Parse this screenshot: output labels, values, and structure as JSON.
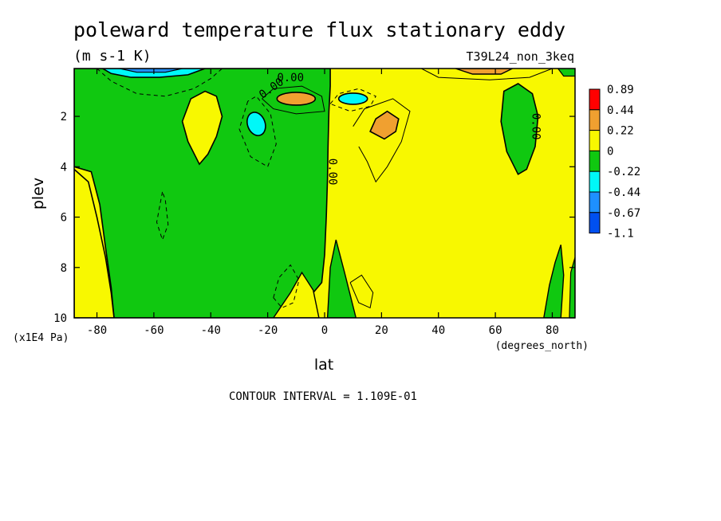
{
  "chart_data": {
    "type": "heatmap",
    "title": "poleward temperature flux stationary eddy",
    "subtitle": "(m s-1 K)",
    "run_label": "T39L24_non_3keq",
    "xlabel": "lat",
    "x_units": "(degrees_north)",
    "ylabel": "plev",
    "y_units": "(x1E4 Pa)",
    "xlim": [
      -88,
      88
    ],
    "ylim": [
      10,
      0.1
    ],
    "x_ticks": [
      -80,
      -60,
      -40,
      -20,
      0,
      20,
      40,
      60,
      80
    ],
    "x_tick_labels": [
      "-80",
      "-60",
      "-40",
      "-20",
      "0",
      "20",
      "40",
      "60",
      "80"
    ],
    "y_ticks": [
      2,
      4,
      6,
      8,
      10
    ],
    "y_tick_labels": [
      "2",
      "4",
      "6",
      "8",
      "10"
    ],
    "contour_interval_text": "CONTOUR INTERVAL = 1.109E-01",
    "contour_labels": [
      "0.00",
      "0.00",
      "0.00",
      "0.00"
    ],
    "legend": {
      "placement": "right",
      "levels": [
        "0.89",
        "0.44",
        "0.22",
        "0",
        "-0.22",
        "-0.44",
        "-0.67",
        "-1.1"
      ],
      "colors": [
        "#ff0000",
        "#f0a030",
        "#f8f800",
        "#10c810",
        "#00f8f8",
        "#1e90ff",
        "#0050f0"
      ]
    },
    "fill_colors": {
      "pos_low": "#f8f800",
      "neg_low": "#10c810",
      "pos_mid": "#f0a030",
      "neg_mid": "#00f8f8",
      "neg_high": "#1e90ff"
    },
    "regions": [
      {
        "sign": "negative",
        "level": "neg_low",
        "description": "southern hemisphere",
        "lat_range": [
          -88,
          1
        ],
        "plev_range": [
          0.1,
          10
        ]
      },
      {
        "sign": "positive",
        "level": "pos_low",
        "description": "northern hemisphere",
        "lat_range": [
          0,
          88
        ],
        "plev_range": [
          0.1,
          10
        ]
      },
      {
        "sign": "negative",
        "level": "neg_mid",
        "center_lat": -70,
        "center_plev": 0.2
      },
      {
        "sign": "negative",
        "level": "neg_mid",
        "center_lat": -24,
        "center_plev": 2.3
      },
      {
        "sign": "negative",
        "level": "neg_mid",
        "center_lat": 10,
        "center_plev": 1.3
      },
      {
        "sign": "positive",
        "level": "pos_mid",
        "center_lat": -10,
        "center_plev": 1.3
      },
      {
        "sign": "positive",
        "level": "pos_mid",
        "center_lat": 22,
        "center_plev": 2.3
      },
      {
        "sign": "positive",
        "level": "pos_mid",
        "center_lat": 55,
        "center_plev": 0.1
      },
      {
        "sign": "negative",
        "level": "neg_low",
        "center_lat": 70,
        "center_plev": 2.5
      },
      {
        "sign": "positive",
        "level": "pos_low",
        "center_lat": -45,
        "center_plev": 2.5
      }
    ]
  }
}
